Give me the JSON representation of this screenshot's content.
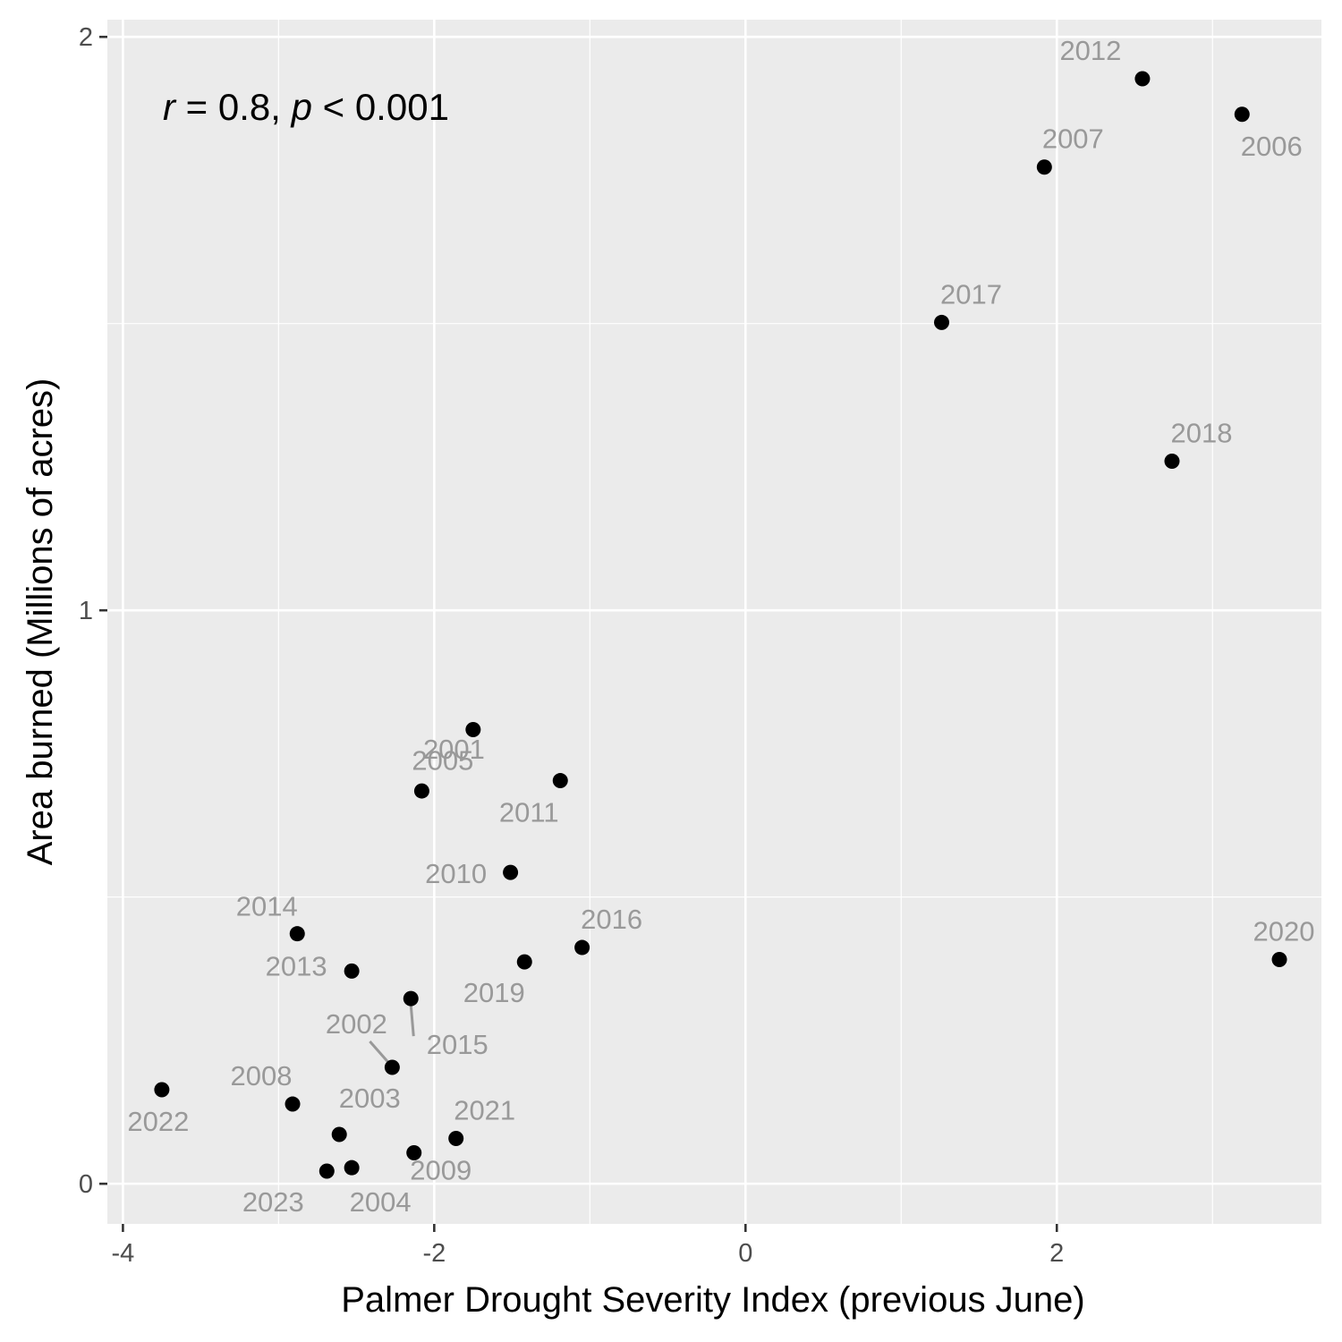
{
  "chart_data": {
    "type": "scatter",
    "xlabel": "Palmer Drought Severity Index (previous June)",
    "ylabel": "Area burned (Millions of acres)",
    "xlim": [
      -4.1,
      3.7
    ],
    "ylim": [
      -0.07,
      2.03
    ],
    "x_ticks": [
      -4,
      -2,
      0,
      2
    ],
    "x_tick_labels": [
      "-4",
      "-2",
      "0",
      "2"
    ],
    "y_ticks": [
      0,
      1,
      2
    ],
    "y_tick_labels": [
      "0",
      "1",
      "2"
    ],
    "grid": true,
    "annotation": {
      "r_symbol": "r",
      "r_text": " = 0.8, ",
      "p_symbol": "p",
      "p_text": " < 0.001"
    },
    "points": [
      {
        "label": "2001",
        "x": -2.08,
        "y": 0.685
      },
      {
        "label": "2002",
        "x": -2.27,
        "y": 0.203
      },
      {
        "label": "2003",
        "x": -2.61,
        "y": 0.086
      },
      {
        "label": "2004",
        "x": -2.53,
        "y": 0.028
      },
      {
        "label": "2005",
        "x": -1.75,
        "y": 0.792
      },
      {
        "label": "2006",
        "x": 3.19,
        "y": 1.865
      },
      {
        "label": "2007",
        "x": 1.92,
        "y": 1.773
      },
      {
        "label": "2008",
        "x": -2.91,
        "y": 0.139
      },
      {
        "label": "2009",
        "x": -2.13,
        "y": 0.054
      },
      {
        "label": "2010",
        "x": -1.51,
        "y": 0.543
      },
      {
        "label": "2011",
        "x": -1.19,
        "y": 0.703
      },
      {
        "label": "2012",
        "x": 2.55,
        "y": 1.927
      },
      {
        "label": "2013",
        "x": -2.53,
        "y": 0.371
      },
      {
        "label": "2014",
        "x": -2.88,
        "y": 0.436
      },
      {
        "label": "2015",
        "x": -2.15,
        "y": 0.323
      },
      {
        "label": "2016",
        "x": -1.05,
        "y": 0.412
      },
      {
        "label": "2017",
        "x": 1.26,
        "y": 1.502
      },
      {
        "label": "2018",
        "x": 2.74,
        "y": 1.26
      },
      {
        "label": "2019",
        "x": -1.42,
        "y": 0.387
      },
      {
        "label": "2020",
        "x": 3.43,
        "y": 0.391
      },
      {
        "label": "2021",
        "x": -1.86,
        "y": 0.079
      },
      {
        "label": "2022",
        "x": -3.75,
        "y": 0.164
      },
      {
        "label": "2023",
        "x": -2.69,
        "y": 0.022
      }
    ]
  }
}
